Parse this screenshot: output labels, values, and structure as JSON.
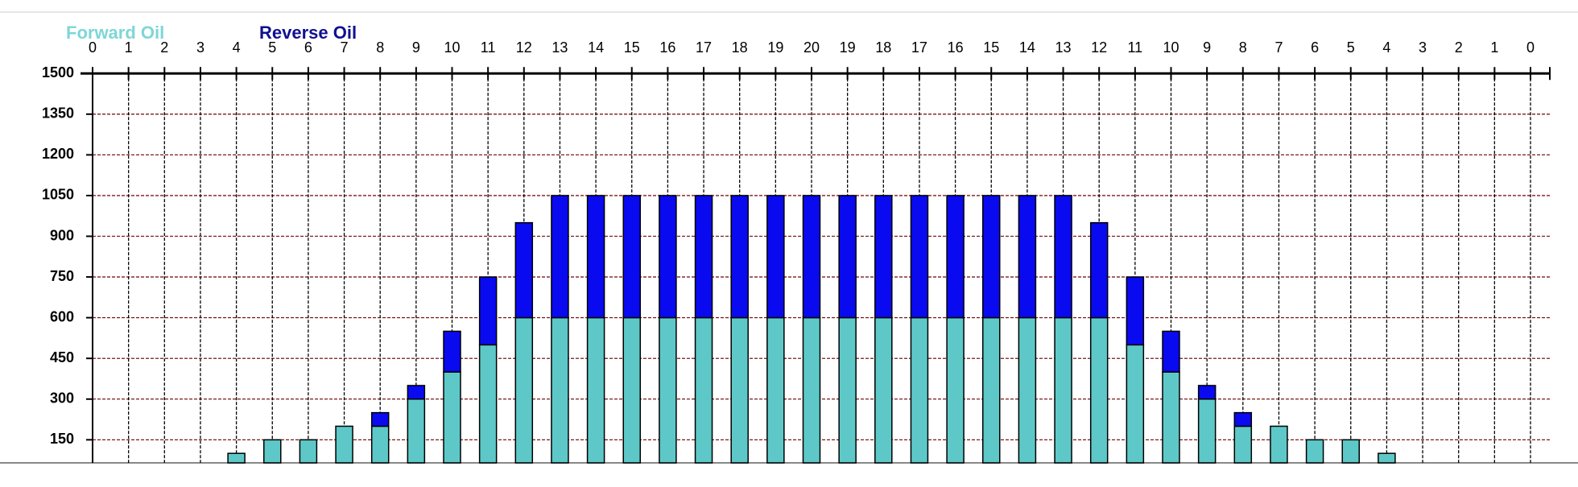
{
  "chart_data": {
    "type": "stacked_bar",
    "categories": [
      "0",
      "1",
      "2",
      "3",
      "4",
      "5",
      "6",
      "7",
      "8",
      "9",
      "10",
      "11",
      "12",
      "13",
      "14",
      "15",
      "16",
      "17",
      "18",
      "19",
      "20",
      "19",
      "18",
      "17",
      "16",
      "15",
      "14",
      "13",
      "12",
      "11",
      "10",
      "9",
      "8",
      "7",
      "6",
      "5",
      "4",
      "3",
      "2",
      "1",
      "0"
    ],
    "series": [
      {
        "name": "Forward Oil",
        "color": "#5ec8c8",
        "values": [
          null,
          null,
          null,
          null,
          100,
          150,
          150,
          200,
          200,
          300,
          400,
          500,
          600,
          600,
          600,
          600,
          600,
          600,
          600,
          600,
          600,
          600,
          600,
          600,
          600,
          600,
          600,
          600,
          600,
          500,
          400,
          300,
          200,
          200,
          150,
          150,
          100,
          null,
          null,
          null,
          null
        ]
      },
      {
        "name": "Reverse Oil",
        "color": "#0a0af0",
        "values": [
          null,
          null,
          null,
          null,
          0,
          0,
          0,
          0,
          50,
          50,
          150,
          250,
          350,
          450,
          450,
          450,
          450,
          450,
          450,
          450,
          450,
          450,
          450,
          450,
          450,
          450,
          450,
          450,
          350,
          250,
          150,
          50,
          50,
          0,
          0,
          0,
          0,
          null,
          null,
          null,
          null
        ]
      }
    ],
    "ylim": [
      65,
      1500
    ],
    "yticks": [
      150,
      300,
      450,
      600,
      750,
      900,
      1050,
      1200,
      1350,
      1500
    ],
    "grid": true
  }
}
